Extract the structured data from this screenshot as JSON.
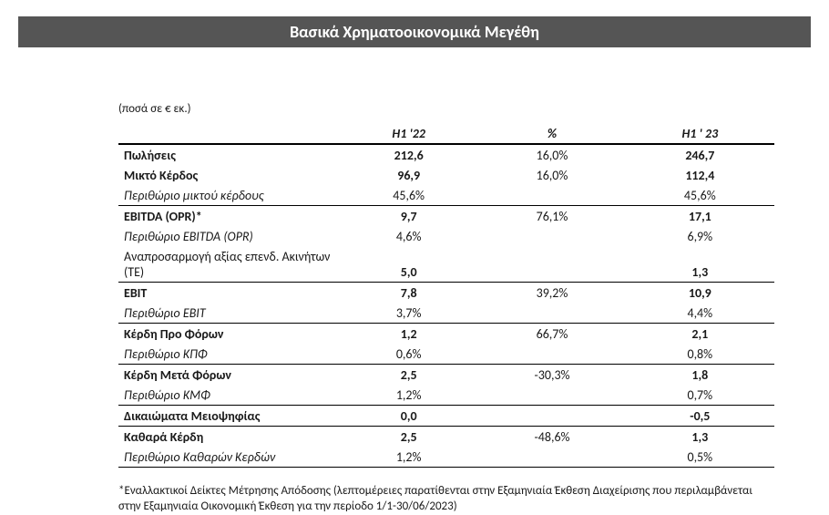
{
  "title": "Βασικά Χρηματοοικονομικά Μεγέθη",
  "units_note": "(ποσά σε € εκ.)",
  "columns": {
    "c1": "H1 '22",
    "c2": "%",
    "c3": "H1 ' 23"
  },
  "rows": {
    "sales": {
      "label": "Πωλήσεις",
      "h1_22": "212,6",
      "pct": "16,0%",
      "h1_23": "246,7"
    },
    "gross": {
      "label": "Μικτό Κέρδος",
      "h1_22": "96,9",
      "pct": "16,0%",
      "h1_23": "112,4"
    },
    "gross_m": {
      "label": "Περιθώριο μικτού κέρδους",
      "h1_22": "45,6%",
      "pct": "",
      "h1_23": "45,6%"
    },
    "ebitda": {
      "label": "EBITDA (OPR)*",
      "h1_22": "9,7",
      "pct": "76,1%",
      "h1_23": "17,1"
    },
    "ebitda_m": {
      "label": "Περιθώριο EBITDA (OPR)",
      "h1_22": "4,6%",
      "pct": "",
      "h1_23": "6,9%"
    },
    "reval": {
      "label": "Αναπροσαρμογή αξίας επενδ. Ακινήτων (TE)",
      "h1_22": "5,0",
      "pct": "",
      "h1_23": "1,3"
    },
    "ebit": {
      "label": "EBIT",
      "h1_22": "7,8",
      "pct": "39,2%",
      "h1_23": "10,9"
    },
    "ebit_m": {
      "label": "Περιθώριο EBIT",
      "h1_22": "3,7%",
      "pct": "",
      "h1_23": "4,4%"
    },
    "pbt": {
      "label": "Κέρδη Προ Φόρων",
      "h1_22": "1,2",
      "pct": "66,7%",
      "h1_23": "2,1"
    },
    "pbt_m": {
      "label": "Περιθώριο ΚΠΦ",
      "h1_22": "0,6%",
      "pct": "",
      "h1_23": "0,8%"
    },
    "pat": {
      "label": "Κέρδη Μετά Φόρων",
      "h1_22": "2,5",
      "pct": "-30,3%",
      "h1_23": "1,8"
    },
    "pat_m": {
      "label": "Περιθώριο ΚΜΦ",
      "h1_22": "1,2%",
      "pct": "",
      "h1_23": "0,7%"
    },
    "minority": {
      "label": "Δικαιώματα Μειοψηφίας",
      "h1_22": "0,0",
      "pct": "",
      "h1_23": "-0,5"
    },
    "net": {
      "label": "Καθαρά Κέρδη",
      "h1_22": "2,5",
      "pct": "-48,6%",
      "h1_23": "1,3"
    },
    "net_m": {
      "label": "Περιθώριο Καθαρών Κερδών",
      "h1_22": "1,2%",
      "pct": "",
      "h1_23": "0,5%"
    }
  },
  "footnote": "*Εναλλακτικοί Δείκτες Μέτρησης Απόδοσης (λεπτομέρειες παρατίθενται στην Εξαμηνιαία Έκθεση Διαχείρισης που περιλαμβάνεται στην Εξαμηνιαία Οικονομική Έκθεση για την περίοδο 1/1-30/06/2023)"
}
